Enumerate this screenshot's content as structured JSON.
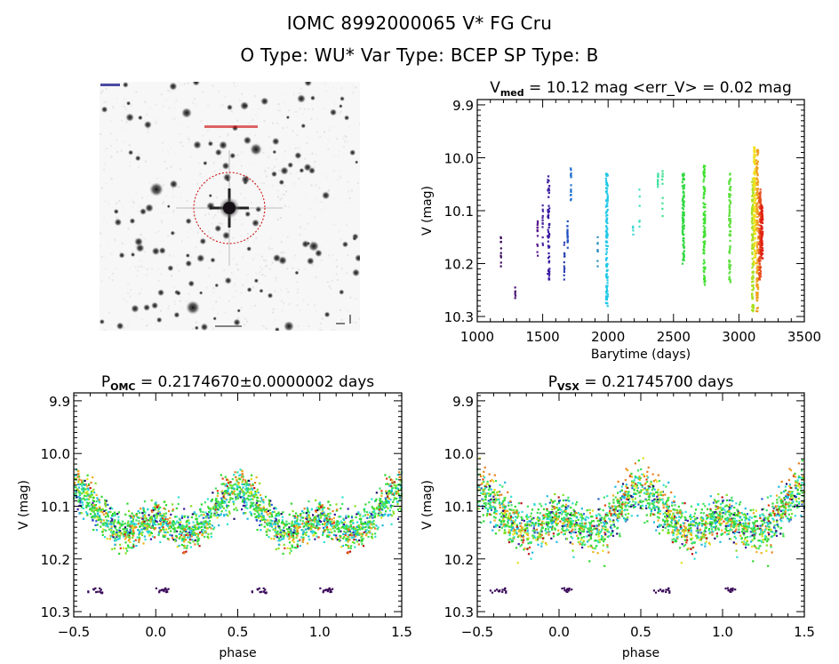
{
  "header": {
    "title": "IOMC 8992000065    V* FG Cru",
    "subtitle": "O Type: WU*   Var Type: BCEP   SP Type: B"
  },
  "sky_image": {
    "alt": "DSS field image centered on target star with red dashed aperture circle",
    "aperture_color": "#cc0000",
    "label_color_top": "#000080",
    "label_color_mid": "#cc0000"
  },
  "chart_data": [
    {
      "id": "lightcurve",
      "type": "scatter",
      "title_main": "V",
      "title_sub": "med",
      "title_rest": " = 10.12 mag <err_V> = 0.02 mag",
      "xlabel": "Barytime (days)",
      "ylabel": "V (mag)",
      "xlim": [
        1000,
        3500
      ],
      "ylim": [
        10.31,
        9.89
      ],
      "y_inverted": true,
      "xticks": [
        1000,
        1500,
        2000,
        2500,
        3000,
        3500
      ],
      "xtick_labels": [
        "1000",
        "1500",
        "2000",
        "2500",
        "3000",
        "3500"
      ],
      "yticks": [
        9.9,
        10.0,
        10.1,
        10.2,
        10.3
      ],
      "ytick_labels": [
        "9.9",
        "10.0",
        "10.1",
        "10.2",
        "10.3"
      ],
      "x_minor_step": 100,
      "y_minor_step": 0.01,
      "groups": [
        {
          "t": 1180,
          "vmin": 10.15,
          "vmax": 10.205,
          "n": 10,
          "color": "#3a0a5a"
        },
        {
          "t": 1290,
          "vmin": 10.245,
          "vmax": 10.265,
          "n": 6,
          "color": "#4a1070"
        },
        {
          "t": 1460,
          "vmin": 10.12,
          "vmax": 10.185,
          "n": 14,
          "color": "#5a1a8a"
        },
        {
          "t": 1500,
          "vmin": 10.09,
          "vmax": 10.165,
          "n": 12,
          "color": "#4a2aa0"
        },
        {
          "t": 1545,
          "vmin": 10.035,
          "vmax": 10.23,
          "n": 60,
          "color": "#3a1aa0"
        },
        {
          "t": 1665,
          "vmin": 10.16,
          "vmax": 10.23,
          "n": 14,
          "color": "#2a40b0"
        },
        {
          "t": 1690,
          "vmin": 10.12,
          "vmax": 10.17,
          "n": 16,
          "color": "#2050c0"
        },
        {
          "t": 1715,
          "vmin": 10.02,
          "vmax": 10.08,
          "n": 14,
          "color": "#2070d0"
        },
        {
          "t": 1920,
          "vmin": 10.15,
          "vmax": 10.205,
          "n": 8,
          "color": "#3090c0"
        },
        {
          "t": 1990,
          "vmin": 10.03,
          "vmax": 10.28,
          "n": 120,
          "color": "#20c8e8"
        },
        {
          "t": 2190,
          "vmin": 10.13,
          "vmax": 10.145,
          "n": 6,
          "color": "#40d8d0"
        },
        {
          "t": 2240,
          "vmin": 10.06,
          "vmax": 10.13,
          "n": 6,
          "color": "#40e0c0"
        },
        {
          "t": 2380,
          "vmin": 10.03,
          "vmax": 10.055,
          "n": 10,
          "color": "#40e0a0"
        },
        {
          "t": 2415,
          "vmin": 10.025,
          "vmax": 10.11,
          "n": 10,
          "color": "#40e090"
        },
        {
          "t": 2575,
          "vmin": 10.03,
          "vmax": 10.2,
          "n": 90,
          "color": "#30d840"
        },
        {
          "t": 2735,
          "vmin": 10.015,
          "vmax": 10.24,
          "n": 110,
          "color": "#40e030"
        },
        {
          "t": 2930,
          "vmin": 10.03,
          "vmax": 10.235,
          "n": 80,
          "color": "#60e040"
        },
        {
          "t": 3105,
          "vmin": 10.04,
          "vmax": 10.29,
          "n": 120,
          "color": "#a8e020"
        },
        {
          "t": 3120,
          "vmin": 9.98,
          "vmax": 10.2,
          "n": 120,
          "color": "#f0e020"
        },
        {
          "t": 3140,
          "vmin": 9.985,
          "vmax": 10.29,
          "n": 140,
          "color": "#f0a020"
        },
        {
          "t": 3160,
          "vmin": 10.06,
          "vmax": 10.23,
          "n": 120,
          "color": "#e85020"
        },
        {
          "t": 3175,
          "vmin": 10.09,
          "vmax": 10.19,
          "n": 80,
          "color": "#e02010"
        }
      ]
    },
    {
      "id": "phase-omc",
      "type": "scatter",
      "title_main": "P",
      "title_sub": "OMC",
      "title_rest": " = 0.2174670±0.0000002 days",
      "xlabel": "phase",
      "ylabel": "V (mag)",
      "xlim": [
        -0.5,
        1.5
      ],
      "ylim": [
        10.31,
        9.885
      ],
      "y_inverted": true,
      "xticks": [
        -0.5,
        0.0,
        0.5,
        1.0,
        1.5
      ],
      "xtick_labels": [
        "−0.5",
        "0.0",
        "0.5",
        "1.0",
        "1.5"
      ],
      "yticks": [
        9.9,
        10.0,
        10.1,
        10.2,
        10.3
      ],
      "ytick_labels": [
        "9.9",
        "10.0",
        "10.1",
        "10.2",
        "10.3"
      ],
      "x_minor_step": 0.1,
      "y_minor_step": 0.01,
      "model": {
        "mean_mag": 10.12,
        "amplitude_mag": 0.045,
        "max_phase": 0.5,
        "scatter_mag": 0.03,
        "points_per_cycle": 1150,
        "seed": 7
      },
      "palette": [
        "#1a0a6a",
        "#3a1aa0",
        "#2060d0",
        "#20b8e0",
        "#30e0d0",
        "#40e060",
        "#30d830",
        "#80e020",
        "#e0e020",
        "#f0b020",
        "#e88020",
        "#e04010",
        "#c01010"
      ],
      "palette_weights": [
        3,
        3,
        3,
        10,
        12,
        18,
        22,
        10,
        6,
        7,
        6,
        3,
        2
      ]
    },
    {
      "id": "phase-vsx",
      "type": "scatter",
      "title_main": "P",
      "title_sub": "VSX",
      "title_rest": " = 0.21745700 days",
      "xlabel": "phase",
      "ylabel": "V (mag)",
      "xlim": [
        -0.5,
        1.5
      ],
      "ylim": [
        10.31,
        9.885
      ],
      "y_inverted": true,
      "xticks": [
        -0.5,
        0.0,
        0.5,
        1.0,
        1.5
      ],
      "xtick_labels": [
        "−0.5",
        "0.0",
        "0.5",
        "1.0",
        "1.5"
      ],
      "yticks": [
        9.9,
        10.0,
        10.1,
        10.2,
        10.3
      ],
      "ytick_labels": [
        "9.9",
        "10.0",
        "10.1",
        "10.2",
        "10.3"
      ],
      "x_minor_step": 0.1,
      "y_minor_step": 0.01,
      "model": {
        "mean_mag": 10.12,
        "amplitude_mag": 0.04,
        "max_phase": 0.5,
        "scatter_mag": 0.035,
        "points_per_cycle": 1150,
        "seed": 11
      },
      "palette": [
        "#1a0a6a",
        "#3a1aa0",
        "#2060d0",
        "#20b8e0",
        "#30e0d0",
        "#40e060",
        "#30d830",
        "#80e020",
        "#e0e020",
        "#f0b020",
        "#e88020",
        "#e04010",
        "#c01010"
      ],
      "palette_weights": [
        3,
        3,
        3,
        10,
        12,
        18,
        22,
        10,
        6,
        7,
        6,
        3,
        2
      ]
    }
  ]
}
